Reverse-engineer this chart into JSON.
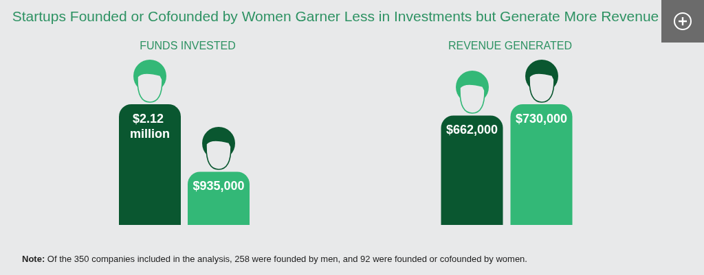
{
  "chart_data": [
    {
      "type": "bar",
      "title": "Startups Founded or Cofounded by Women Garner Less in Investments but Generate More Revenue",
      "subtitle": "FUNDS INVESTED",
      "categories": [
        null,
        null
      ],
      "values": [
        2120000,
        935000
      ],
      "colors": [
        "#0a5730",
        "#33b877"
      ],
      "value_labels": [
        "$2.12 million",
        "$935,000"
      ],
      "annotations": [
        "Note: Of the 350 companies included in the analysis, 258 were founded by men, and 92 were founded or cofounded by women."
      ]
    },
    {
      "type": "bar",
      "subtitle": "REVENUE GENERATED",
      "categories": [
        null,
        null
      ],
      "values": [
        662000,
        730000
      ],
      "colors": [
        "#0a5730",
        "#33b877"
      ],
      "value_labels": [
        "$662,000",
        "$730,000"
      ]
    }
  ]
}
